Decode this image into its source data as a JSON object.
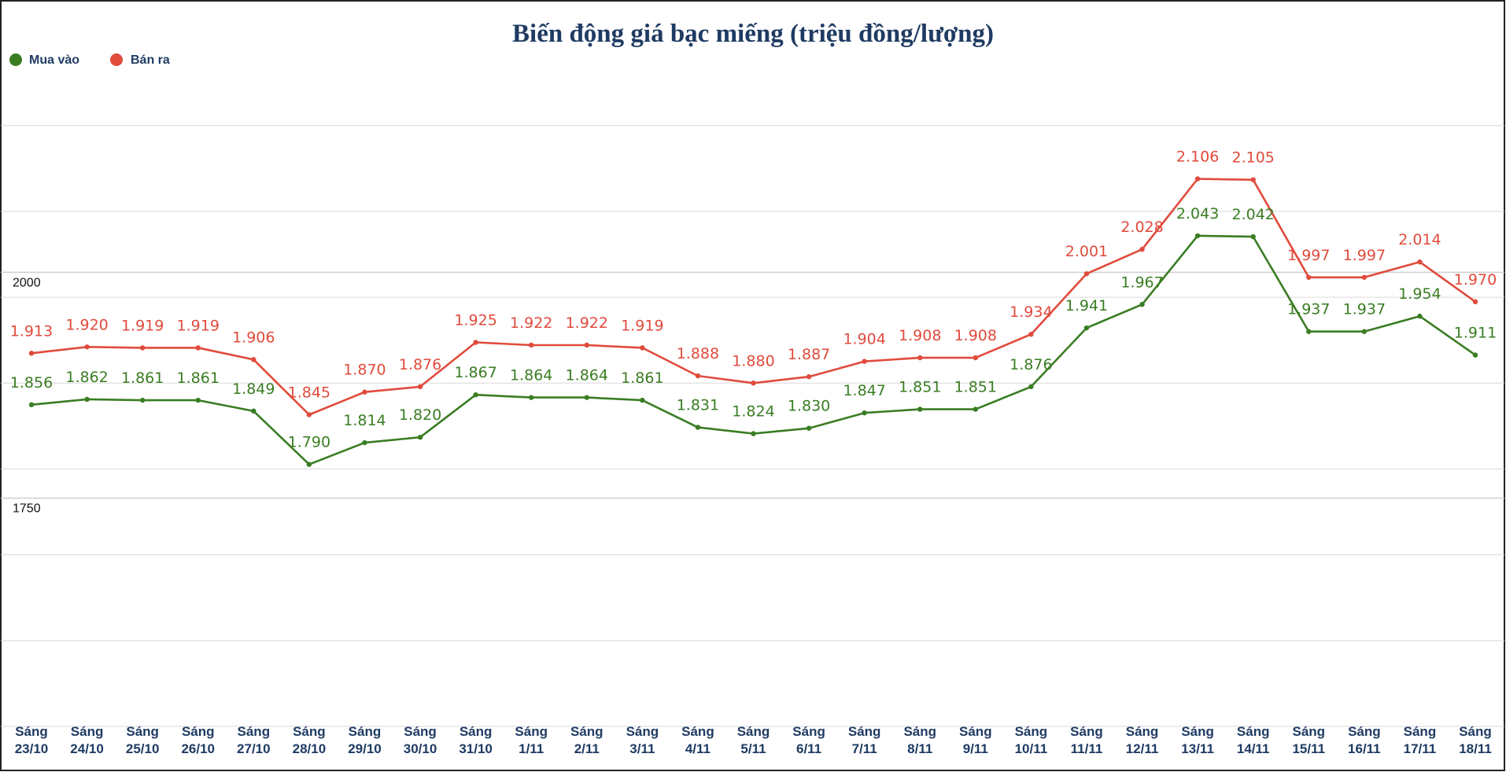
{
  "chart_data": {
    "type": "line",
    "title": "Biến động giá bạc miếng (triệu đồng/lượng)",
    "xlabel": "",
    "ylabel": "",
    "categories": [
      [
        "Sáng",
        "23/10"
      ],
      [
        "Sáng",
        "24/10"
      ],
      [
        "Sáng",
        "25/10"
      ],
      [
        "Sáng",
        "26/10"
      ],
      [
        "Sáng",
        "27/10"
      ],
      [
        "Sáng",
        "28/10"
      ],
      [
        "Sáng",
        "29/10"
      ],
      [
        "Sáng",
        "30/10"
      ],
      [
        "Sáng",
        "31/10"
      ],
      [
        "Sáng",
        "1/11"
      ],
      [
        "Sáng",
        "2/11"
      ],
      [
        "Sáng",
        "3/11"
      ],
      [
        "Sáng",
        "4/11"
      ],
      [
        "Sáng",
        "5/11"
      ],
      [
        "Sáng",
        "6/11"
      ],
      [
        "Sáng",
        "7/11"
      ],
      [
        "Sáng",
        "8/11"
      ],
      [
        "Sáng",
        "9/11"
      ],
      [
        "Sáng",
        "10/11"
      ],
      [
        "Sáng",
        "11/11"
      ],
      [
        "Sáng",
        "12/11"
      ],
      [
        "Sáng",
        "13/11"
      ],
      [
        "Sáng",
        "14/11"
      ],
      [
        "Sáng",
        "15/11"
      ],
      [
        "Sáng",
        "16/11"
      ],
      [
        "Sáng",
        "17/11"
      ],
      [
        "Sáng",
        "18/11"
      ]
    ],
    "series": [
      {
        "name": "Mua vào",
        "color": "#3a7d23",
        "values": [
          1856,
          1862,
          1861,
          1861,
          1849,
          1790,
          1814,
          1820,
          1867,
          1864,
          1864,
          1861,
          1831,
          1824,
          1830,
          1847,
          1851,
          1851,
          1876,
          1941,
          1967,
          2043,
          2042,
          1937,
          1937,
          1954,
          1911
        ],
        "labels": [
          "1.856",
          "1.862",
          "1.861",
          "1.861",
          "1.849",
          "1.790",
          "1.814",
          "1.820",
          "1.867",
          "1.864",
          "1.864",
          "1.861",
          "1.831",
          "1.824",
          "1.830",
          "1.847",
          "1.851",
          "1.851",
          "1.876",
          "1.941",
          "1.967",
          "2.043",
          "2.042",
          "1.937",
          "1.937",
          "1.954",
          "1.911"
        ]
      },
      {
        "name": "Bán ra",
        "color": "#e04b3c",
        "values": [
          1913,
          1920,
          1919,
          1919,
          1906,
          1845,
          1870,
          1876,
          1925,
          1922,
          1922,
          1919,
          1888,
          1880,
          1887,
          1904,
          1908,
          1908,
          1934,
          2001,
          2028,
          2106,
          2105,
          1997,
          1997,
          2014,
          1970
        ],
        "labels": [
          "1.913",
          "1.920",
          "1.919",
          "1.919",
          "1.906",
          "1.845",
          "1.870",
          "1.876",
          "1.925",
          "1.922",
          "1.922",
          "1.919",
          "1.888",
          "1.880",
          "1.887",
          "1.904",
          "1.908",
          "1.908",
          "1.934",
          "2.001",
          "2.028",
          "2.106",
          "2.105",
          "1.997",
          "1.997",
          "2.014",
          "1.970"
        ]
      }
    ],
    "yticks": [
      2000,
      1750
    ],
    "ylim": [
      1500,
      2250
    ],
    "grid": true,
    "legend": "top-left"
  }
}
